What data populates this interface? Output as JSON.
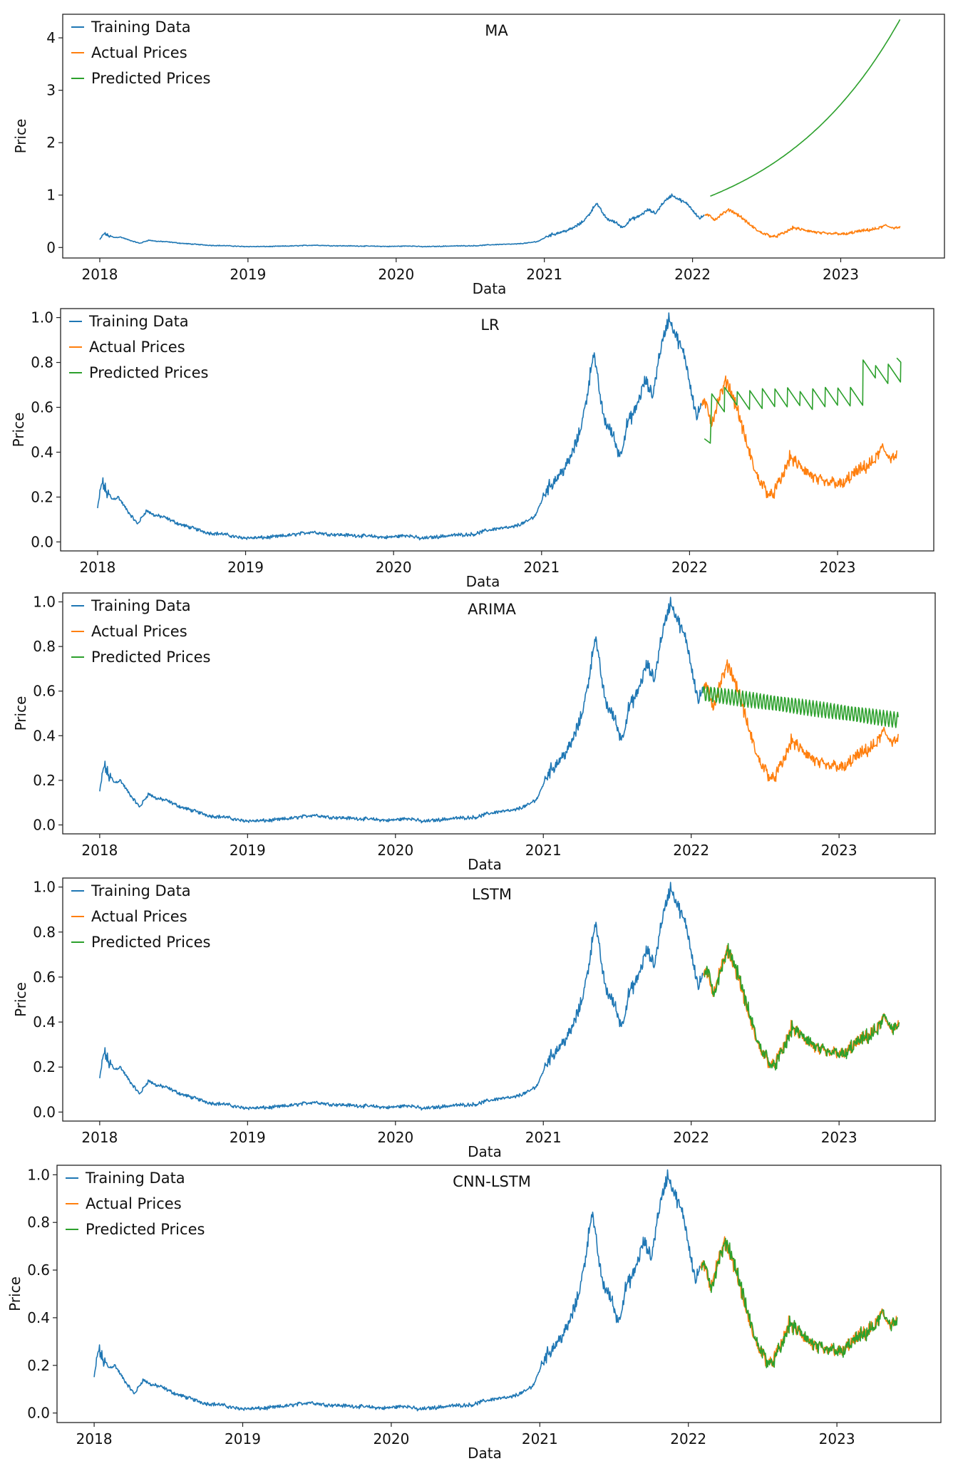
{
  "colors": {
    "training": "#1f77b4",
    "actual": "#ff7f0e",
    "predicted": "#2ca02c"
  },
  "legend": [
    "Training Data",
    "Actual Prices",
    "Predicted Prices"
  ],
  "chart_data": [
    {
      "type": "line",
      "title": "MA",
      "xlabel": "Data",
      "ylabel": "Price",
      "x_ticks": [
        "2018",
        "2019",
        "2020",
        "2021",
        "2022",
        "2023"
      ],
      "y_ticks": [
        "0",
        "1",
        "2",
        "3",
        "4"
      ],
      "xlim": [
        2017.75,
        2023.7
      ],
      "ylim": [
        -0.2,
        4.45
      ],
      "predicted_model": "exp_growth",
      "predicted_start": 0.98,
      "predicted_end": 4.35,
      "series": [
        {
          "name": "Training Data",
          "x_range": [
            2018.0,
            2022.08
          ]
        },
        {
          "name": "Actual Prices",
          "x_range": [
            2022.08,
            2023.4
          ]
        },
        {
          "name": "Predicted Prices",
          "x_range": [
            2022.12,
            2023.4
          ]
        }
      ]
    },
    {
      "type": "line",
      "title": "LR",
      "xlabel": "Data",
      "ylabel": "Price",
      "x_ticks": [
        "2018",
        "2019",
        "2020",
        "2021",
        "2022",
        "2023"
      ],
      "y_ticks": [
        "0.0",
        "0.2",
        "0.4",
        "0.6",
        "0.8",
        "1.0"
      ],
      "xlim": [
        2017.75,
        2023.65
      ],
      "ylim": [
        -0.04,
        1.04
      ],
      "predicted_model": "sawtooth_up",
      "series": [
        {
          "name": "Training Data",
          "x_range": [
            2018.0,
            2022.08
          ]
        },
        {
          "name": "Actual Prices",
          "x_range": [
            2022.08,
            2023.4
          ]
        },
        {
          "name": "Predicted Prices",
          "x_range": [
            2022.1,
            2023.4
          ]
        }
      ]
    },
    {
      "type": "line",
      "title": "ARIMA",
      "xlabel": "Data",
      "ylabel": "Price",
      "x_ticks": [
        "2018",
        "2019",
        "2020",
        "2021",
        "2022",
        "2023"
      ],
      "y_ticks": [
        "0.0",
        "0.2",
        "0.4",
        "0.6",
        "0.8",
        "1.0"
      ],
      "xlim": [
        2017.75,
        2023.65
      ],
      "ylim": [
        -0.04,
        1.04
      ],
      "predicted_model": "oscillating_decay",
      "series": [
        {
          "name": "Training Data",
          "x_range": [
            2018.0,
            2022.08
          ]
        },
        {
          "name": "Actual Prices",
          "x_range": [
            2022.08,
            2023.4
          ]
        },
        {
          "name": "Predicted Prices",
          "x_range": [
            2022.08,
            2023.4
          ]
        }
      ]
    },
    {
      "type": "line",
      "title": "LSTM",
      "xlabel": "Data",
      "ylabel": "Price",
      "x_ticks": [
        "2018",
        "2019",
        "2020",
        "2021",
        "2022",
        "2023"
      ],
      "y_ticks": [
        "0.0",
        "0.2",
        "0.4",
        "0.6",
        "0.8",
        "1.0"
      ],
      "xlim": [
        2017.75,
        2023.65
      ],
      "ylim": [
        -0.04,
        1.04
      ],
      "predicted_model": "tracks_actual",
      "series": [
        {
          "name": "Training Data",
          "x_range": [
            2018.0,
            2022.08
          ]
        },
        {
          "name": "Actual Prices",
          "x_range": [
            2022.08,
            2023.4
          ]
        },
        {
          "name": "Predicted Prices",
          "x_range": [
            2022.08,
            2023.4
          ]
        }
      ]
    },
    {
      "type": "line",
      "title": "CNN-LSTM",
      "xlabel": "Data",
      "ylabel": "Price",
      "x_ticks": [
        "2018",
        "2019",
        "2020",
        "2021",
        "2022",
        "2023"
      ],
      "y_ticks": [
        "0.0",
        "0.2",
        "0.4",
        "0.6",
        "0.8",
        "1.0"
      ],
      "xlim": [
        2017.75,
        2023.7
      ],
      "ylim": [
        -0.04,
        1.04
      ],
      "predicted_model": "tracks_actual",
      "series": [
        {
          "name": "Training Data",
          "x_range": [
            2018.0,
            2022.08
          ]
        },
        {
          "name": "Actual Prices",
          "x_range": [
            2022.08,
            2023.4
          ]
        },
        {
          "name": "Predicted Prices",
          "x_range": [
            2022.08,
            2023.4
          ]
        }
      ]
    }
  ],
  "price_keypoints": [
    [
      2018.0,
      0.15
    ],
    [
      2018.03,
      0.27
    ],
    [
      2018.06,
      0.22
    ],
    [
      2018.1,
      0.19
    ],
    [
      2018.14,
      0.2
    ],
    [
      2018.2,
      0.14
    ],
    [
      2018.27,
      0.08
    ],
    [
      2018.33,
      0.14
    ],
    [
      2018.38,
      0.12
    ],
    [
      2018.45,
      0.11
    ],
    [
      2018.55,
      0.08
    ],
    [
      2018.65,
      0.06
    ],
    [
      2018.75,
      0.04
    ],
    [
      2018.85,
      0.035
    ],
    [
      2018.95,
      0.02
    ],
    [
      2019.05,
      0.018
    ],
    [
      2019.15,
      0.02
    ],
    [
      2019.3,
      0.03
    ],
    [
      2019.45,
      0.045
    ],
    [
      2019.55,
      0.035
    ],
    [
      2019.7,
      0.03
    ],
    [
      2019.85,
      0.025
    ],
    [
      2019.95,
      0.02
    ],
    [
      2020.1,
      0.03
    ],
    [
      2020.18,
      0.015
    ],
    [
      2020.25,
      0.02
    ],
    [
      2020.4,
      0.03
    ],
    [
      2020.55,
      0.035
    ],
    [
      2020.62,
      0.05
    ],
    [
      2020.7,
      0.06
    ],
    [
      2020.8,
      0.065
    ],
    [
      2020.9,
      0.09
    ],
    [
      2020.96,
      0.12
    ],
    [
      2021.03,
      0.23
    ],
    [
      2021.12,
      0.3
    ],
    [
      2021.18,
      0.35
    ],
    [
      2021.25,
      0.47
    ],
    [
      2021.3,
      0.62
    ],
    [
      2021.35,
      0.85
    ],
    [
      2021.38,
      0.72
    ],
    [
      2021.42,
      0.55
    ],
    [
      2021.48,
      0.48
    ],
    [
      2021.53,
      0.38
    ],
    [
      2021.58,
      0.53
    ],
    [
      2021.63,
      0.58
    ],
    [
      2021.7,
      0.72
    ],
    [
      2021.75,
      0.65
    ],
    [
      2021.8,
      0.85
    ],
    [
      2021.86,
      1.0
    ],
    [
      2021.92,
      0.9
    ],
    [
      2021.97,
      0.82
    ],
    [
      2022.02,
      0.65
    ],
    [
      2022.05,
      0.55
    ],
    [
      2022.08,
      0.62
    ],
    [
      2022.12,
      0.6
    ],
    [
      2022.15,
      0.53
    ],
    [
      2022.2,
      0.64
    ],
    [
      2022.25,
      0.72
    ],
    [
      2022.32,
      0.6
    ],
    [
      2022.38,
      0.45
    ],
    [
      2022.45,
      0.3
    ],
    [
      2022.5,
      0.25
    ],
    [
      2022.55,
      0.2
    ],
    [
      2022.62,
      0.28
    ],
    [
      2022.68,
      0.38
    ],
    [
      2022.72,
      0.35
    ],
    [
      2022.78,
      0.32
    ],
    [
      2022.85,
      0.28
    ],
    [
      2022.92,
      0.26
    ],
    [
      2022.98,
      0.27
    ],
    [
      2023.03,
      0.25
    ],
    [
      2023.1,
      0.3
    ],
    [
      2023.18,
      0.33
    ],
    [
      2023.25,
      0.36
    ],
    [
      2023.3,
      0.42
    ],
    [
      2023.35,
      0.38
    ],
    [
      2023.4,
      0.38
    ]
  ]
}
